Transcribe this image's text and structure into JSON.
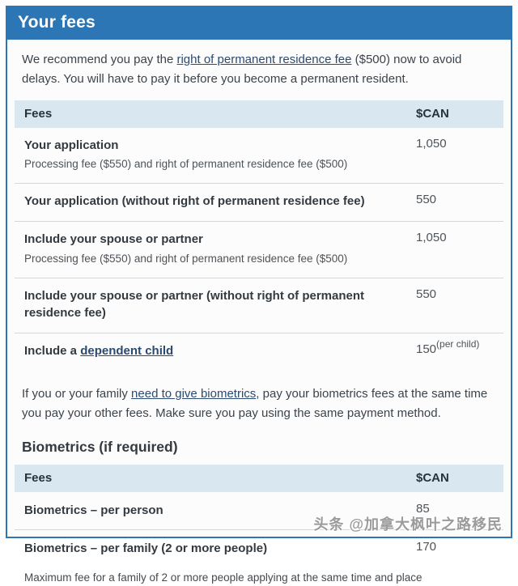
{
  "colors": {
    "panel_blue": "#2d76b5",
    "table_header_bg": "#d9e7f0",
    "link_color": "#2b4a6f",
    "text_color": "#373f47"
  },
  "panel": {
    "title": "Your fees"
  },
  "intro": {
    "before": "We recommend you pay the ",
    "link": "right of permanent residence fee",
    "after": " ($500) now to avoid delays. You will have to pay it before you become a permanent resident."
  },
  "fees_table": {
    "header": {
      "fees": "Fees",
      "currency": "$CAN"
    },
    "rows": [
      {
        "label": "Your application",
        "sublabel": "Processing fee ($550) and right of permanent residence fee ($500)",
        "value": "1,050"
      },
      {
        "label": "Your application (without right of permanent residence fee)",
        "value": "550"
      },
      {
        "label": "Include your spouse or partner",
        "sublabel": "Processing fee ($550) and right of permanent residence fee ($500)",
        "value": "1,050"
      },
      {
        "label": "Include your spouse or partner (without right of permanent residence fee)",
        "value": "550"
      },
      {
        "label_before": "Include a ",
        "link": "dependent child",
        "value": "150",
        "value_suffix": "(per child)"
      }
    ]
  },
  "biometrics_para": {
    "before": "If you or your family ",
    "link": "need to give biometrics",
    "after": ", pay your biometrics fees at the same time you pay your other fees. Make sure you pay using the same payment method."
  },
  "biometrics": {
    "heading": "Biometrics (if required)",
    "table": {
      "header": {
        "fees": "Fees",
        "currency": "$CAN"
      },
      "rows": [
        {
          "label": "Biometrics – per person",
          "value": "85"
        },
        {
          "label": "Biometrics – per family (2 or more people)",
          "value": "170"
        }
      ],
      "note": "Maximum fee for a family of 2 or more people applying at the same time and place"
    }
  },
  "watermark": "头条 @加拿大枫叶之路移民"
}
